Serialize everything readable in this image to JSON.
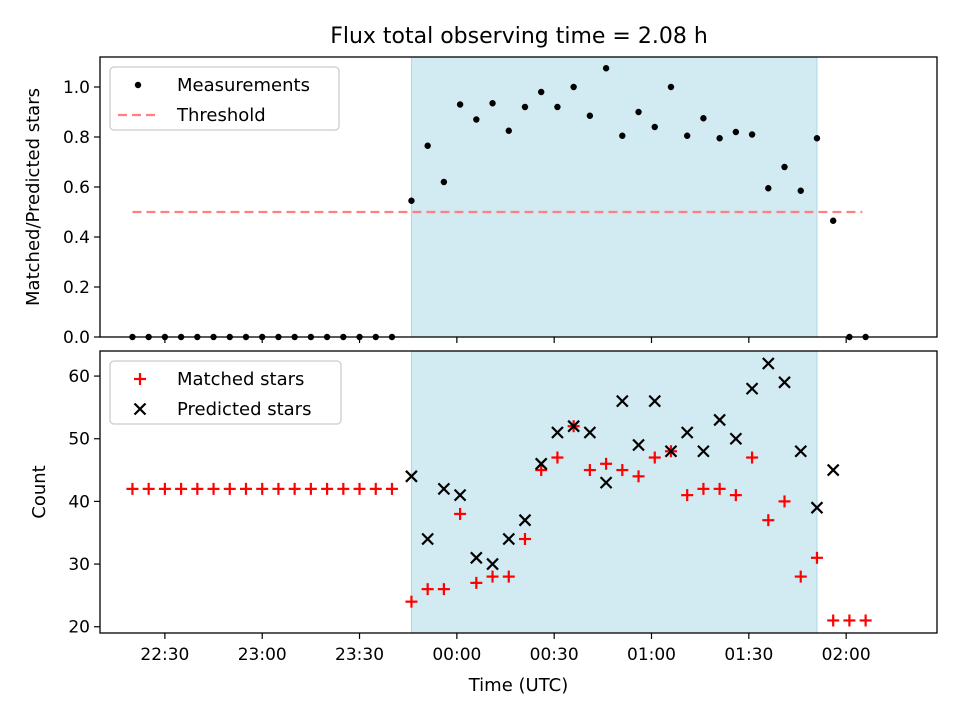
{
  "title": "Flux total observing time = 2.08 h",
  "colors": {
    "shade": "#add8e6",
    "threshold": "#ff8080",
    "matched": "#ff0000",
    "predicted": "#000000",
    "measure": "#000000"
  },
  "chart_data": [
    {
      "type": "scatter",
      "ylabel": "Matched/Predicted stars",
      "ylim": [
        0,
        1.12
      ],
      "yticks": [
        "0.0",
        "0.2",
        "0.4",
        "0.6",
        "0.8",
        "1.0"
      ],
      "xlim": [
        "22:10",
        "02:28"
      ],
      "shaded_interval": [
        "23:46",
        "01:51"
      ],
      "legend": {
        "placement": "upper-left",
        "entries": [
          "Measurements",
          "Threshold"
        ]
      },
      "threshold": {
        "name": "Threshold",
        "value": 0.5,
        "x": [
          "22:20",
          "02:05"
        ]
      },
      "series": [
        {
          "name": "Measurements",
          "x": [
            "22:20",
            "22:25",
            "22:30",
            "22:35",
            "22:40",
            "22:45",
            "22:50",
            "22:55",
            "23:00",
            "23:05",
            "23:10",
            "23:15",
            "23:20",
            "23:25",
            "23:30",
            "23:35",
            "23:40",
            "23:46",
            "23:51",
            "23:56",
            "00:01",
            "00:06",
            "00:11",
            "00:16",
            "00:21",
            "00:26",
            "00:31",
            "00:36",
            "00:41",
            "00:46",
            "00:51",
            "00:56",
            "01:01",
            "01:06",
            "01:11",
            "01:16",
            "01:21",
            "01:26",
            "01:31",
            "01:36",
            "01:41",
            "01:46",
            "01:51",
            "01:56",
            "02:01",
            "02:06"
          ],
          "values": [
            0,
            0,
            0,
            0,
            0,
            0,
            0,
            0,
            0,
            0,
            0,
            0,
            0,
            0,
            0,
            0,
            0,
            0.545,
            0.765,
            0.62,
            0.93,
            0.87,
            0.935,
            0.825,
            0.92,
            0.98,
            0.92,
            1.0,
            0.885,
            1.075,
            0.805,
            0.9,
            0.84,
            1.0,
            0.805,
            0.875,
            0.795,
            0.82,
            0.81,
            0.595,
            0.68,
            0.585,
            0.795,
            0.465,
            0,
            0
          ]
        }
      ]
    },
    {
      "type": "scatter",
      "ylabel": "Count",
      "xlabel": "Time (UTC)",
      "ylim": [
        19,
        64
      ],
      "yticks": [
        "20",
        "30",
        "40",
        "50",
        "60"
      ],
      "xlim": [
        "22:10",
        "02:28"
      ],
      "xticks": [
        "22:30",
        "23:00",
        "23:30",
        "00:00",
        "00:30",
        "01:00",
        "01:30",
        "02:00"
      ],
      "shaded_interval": [
        "23:46",
        "01:51"
      ],
      "legend": {
        "placement": "upper-left",
        "entries": [
          "Matched stars",
          "Predicted stars"
        ]
      },
      "series": [
        {
          "name": "Matched stars",
          "x": [
            "22:20",
            "22:25",
            "22:30",
            "22:35",
            "22:40",
            "22:45",
            "22:50",
            "22:55",
            "23:00",
            "23:05",
            "23:10",
            "23:15",
            "23:20",
            "23:25",
            "23:30",
            "23:35",
            "23:40",
            "23:46",
            "23:51",
            "23:56",
            "00:01",
            "00:06",
            "00:11",
            "00:16",
            "00:21",
            "00:26",
            "00:31",
            "00:36",
            "00:41",
            "00:46",
            "00:51",
            "00:56",
            "01:01",
            "01:06",
            "01:11",
            "01:16",
            "01:21",
            "01:26",
            "01:31",
            "01:36",
            "01:41",
            "01:46",
            "01:51",
            "01:56",
            "02:01",
            "02:06"
          ],
          "values": [
            42,
            42,
            42,
            42,
            42,
            42,
            42,
            42,
            42,
            42,
            42,
            42,
            42,
            42,
            42,
            42,
            42,
            24,
            26,
            26,
            38,
            27,
            28,
            28,
            34,
            45,
            47,
            52,
            45,
            46,
            45,
            44,
            47,
            48,
            41,
            42,
            42,
            41,
            47,
            37,
            40,
            28,
            31,
            21,
            21,
            21
          ]
        },
        {
          "name": "Predicted stars",
          "x": [
            "23:46",
            "23:51",
            "23:56",
            "00:01",
            "00:06",
            "00:11",
            "00:16",
            "00:21",
            "00:26",
            "00:31",
            "00:36",
            "00:41",
            "00:46",
            "00:51",
            "00:56",
            "01:01",
            "01:06",
            "01:11",
            "01:16",
            "01:21",
            "01:26",
            "01:31",
            "01:36",
            "01:41",
            "01:46",
            "01:51",
            "01:56"
          ],
          "values": [
            44,
            34,
            42,
            41,
            31,
            30,
            34,
            37,
            46,
            51,
            52,
            51,
            43,
            56,
            49,
            56,
            48,
            51,
            48,
            53,
            50,
            58,
            62,
            59,
            48,
            39,
            45
          ]
        }
      ]
    }
  ]
}
